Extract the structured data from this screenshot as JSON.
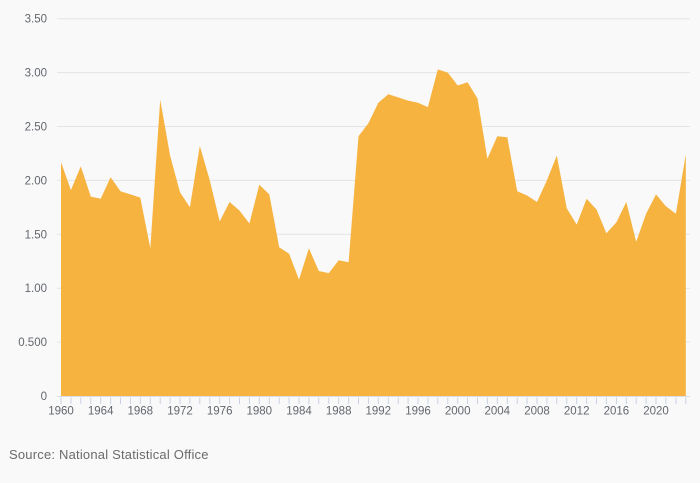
{
  "chart_data": {
    "type": "area",
    "title": "",
    "xlabel": "",
    "ylabel": "",
    "legend": "none",
    "grid": true,
    "ylim": [
      0,
      3.5
    ],
    "series_color": "#F6B340",
    "x": [
      1960,
      1961,
      1962,
      1963,
      1964,
      1965,
      1966,
      1967,
      1968,
      1969,
      1970,
      1971,
      1972,
      1973,
      1974,
      1975,
      1976,
      1977,
      1978,
      1979,
      1980,
      1981,
      1982,
      1983,
      1984,
      1985,
      1986,
      1987,
      1988,
      1989,
      1990,
      1991,
      1992,
      1993,
      1994,
      1995,
      1996,
      1997,
      1998,
      1999,
      2000,
      2001,
      2002,
      2003,
      2004,
      2005,
      2006,
      2007,
      2008,
      2009,
      2010,
      2011,
      2012,
      2013,
      2014,
      2015,
      2016,
      2017,
      2018,
      2019,
      2020,
      2021,
      2022,
      2023
    ],
    "values": [
      2.17,
      1.91,
      2.13,
      1.85,
      1.83,
      2.03,
      1.9,
      1.87,
      1.84,
      1.37,
      2.75,
      2.23,
      1.89,
      1.75,
      2.32,
      2.0,
      1.62,
      1.8,
      1.72,
      1.6,
      1.96,
      1.87,
      1.38,
      1.32,
      1.08,
      1.37,
      1.16,
      1.14,
      1.26,
      1.24,
      2.41,
      2.53,
      2.72,
      2.8,
      2.77,
      2.74,
      2.72,
      2.68,
      3.03,
      3.0,
      2.88,
      2.91,
      2.76,
      2.2,
      2.41,
      2.4,
      1.9,
      1.86,
      1.8,
      2.0,
      2.23,
      1.74,
      1.59,
      1.83,
      1.73,
      1.51,
      1.61,
      1.8,
      1.43,
      1.69,
      1.87,
      1.76,
      1.69,
      2.24
    ],
    "y_ticks": [
      {
        "v": 0,
        "label": "0"
      },
      {
        "v": 0.5,
        "label": "0.500"
      },
      {
        "v": 1.0,
        "label": "1.00"
      },
      {
        "v": 1.5,
        "label": "1.50"
      },
      {
        "v": 2.0,
        "label": "2.00"
      },
      {
        "v": 2.5,
        "label": "2.50"
      },
      {
        "v": 3.0,
        "label": "3.00"
      },
      {
        "v": 3.5,
        "label": "3.50"
      }
    ],
    "x_tick_label_years": [
      1960,
      1964,
      1968,
      1972,
      1976,
      1980,
      1984,
      1988,
      1992,
      1996,
      2000,
      2004,
      2008,
      2012,
      2016,
      2020
    ]
  },
  "footer": {
    "source_label": "Source: National Statistical Office"
  },
  "colors": {
    "background": "#f9f9f9",
    "area": "#F6B340",
    "gridline": "#e4e4e4",
    "axis_line": "#d9dfe8",
    "tick": "#c9d2e2",
    "axis_text": "#62676e",
    "source_text": "#6b6b6b"
  }
}
